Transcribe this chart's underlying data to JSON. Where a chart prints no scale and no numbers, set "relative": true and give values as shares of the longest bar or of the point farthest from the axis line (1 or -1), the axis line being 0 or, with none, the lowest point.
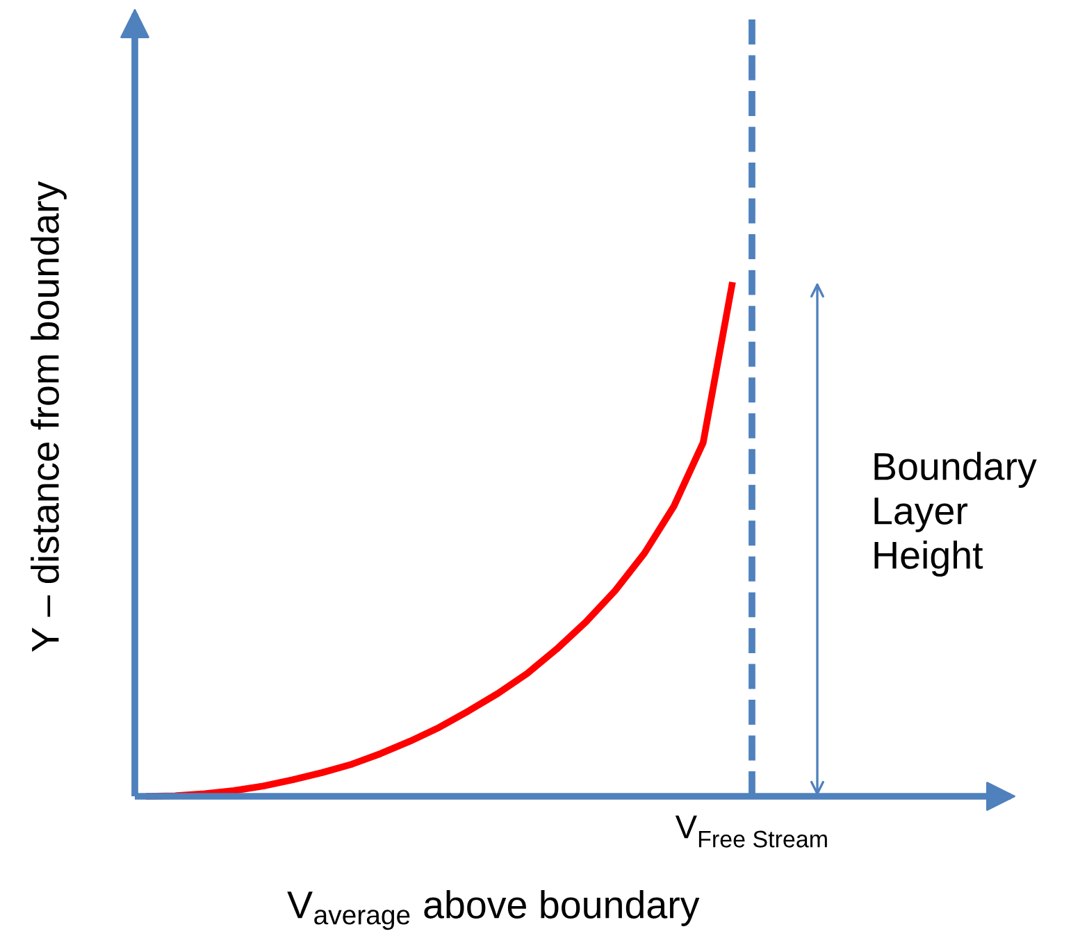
{
  "chart_data": {
    "type": "line",
    "relative": true,
    "xlabel": "V$_{average}$ above boundary",
    "ylabel": "Y – distance from boundary",
    "categories": [
      null,
      null,
      null,
      null,
      null,
      null,
      null,
      null,
      null,
      null,
      null,
      null,
      null,
      null,
      null,
      null,
      null,
      null,
      null,
      null,
      null
    ],
    "series": [
      {
        "color": "#ff0000",
        "values": [
          0,
          0.001,
          0.005,
          0.011,
          0.02,
          0.032,
          0.046,
          0.062,
          0.083,
          0.107,
          0.134,
          0.166,
          0.2,
          0.239,
          0.286,
          0.339,
          0.4,
          0.473,
          0.564,
          0.688,
          1.0
        ]
      }
    ],
    "annotations": [
      "V$_{Free Stream}$",
      "Boundary\nLayer\nHeight"
    ],
    "line_style": "solid"
  }
}
